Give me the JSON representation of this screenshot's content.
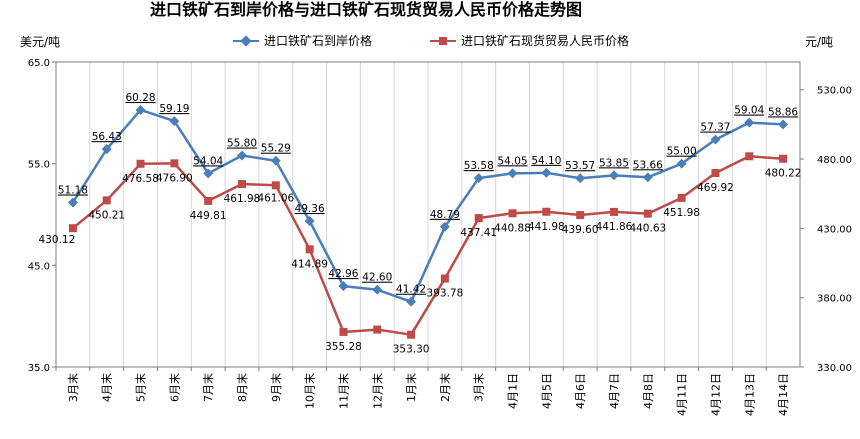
{
  "chart_data": {
    "type": "line",
    "title": "进口铁矿石到岸价格与进口铁矿石现货贸易人民币价格走势图",
    "ylabel_left": "美元/吨",
    "ylabel_right": "元/吨",
    "categories": [
      "3月末",
      "4月末",
      "5月末",
      "6月末",
      "7月末",
      "8月末",
      "9月末",
      "10月末",
      "11月末",
      "12月末",
      "1月末",
      "2月末",
      "3月末",
      "4月1日",
      "4月5日",
      "4月6日",
      "4月7日",
      "4月8日",
      "4月11日",
      "4月12日",
      "4月13日",
      "4月14日"
    ],
    "y_left": {
      "min": 35,
      "max": 65,
      "ticks": [
        35,
        45,
        55,
        65
      ],
      "tick_labels": [
        "35.0",
        "45.0",
        "55.0",
        "65.0"
      ]
    },
    "y_right": {
      "min": 330,
      "max": 550,
      "ticks": [
        330,
        380,
        430,
        480,
        530
      ],
      "tick_labels": [
        "330.00",
        "380.00",
        "430.00",
        "480.00",
        "530.00"
      ]
    },
    "grid": "vertical",
    "legend_position": "top",
    "series": [
      {
        "name": "进口铁矿石到岸价格",
        "axis": "left",
        "color": "#4a7ebb",
        "marker": "diamond",
        "values": [
          51.18,
          56.43,
          60.28,
          59.19,
          54.04,
          55.8,
          55.29,
          49.36,
          42.96,
          42.6,
          41.42,
          48.79,
          53.58,
          54.05,
          54.1,
          53.57,
          53.85,
          53.66,
          55.0,
          57.37,
          59.04,
          58.86
        ],
        "labels": [
          "51.18",
          "56.43",
          "60.28",
          "59.19",
          "54.04",
          "55.80",
          "55.29",
          "49.36",
          "42.96",
          "42.60",
          "41.42",
          "48.79",
          "53.58",
          "54.05",
          "54.10",
          "53.57",
          "53.85",
          "53.66",
          "55.00",
          "57.37",
          "59.04",
          "58.86"
        ]
      },
      {
        "name": "进口铁矿石现货贸易人民币价格",
        "axis": "right",
        "color": "#be4b48",
        "marker": "square",
        "values": [
          430.12,
          450.21,
          476.58,
          476.9,
          449.81,
          461.98,
          461.06,
          414.89,
          355.28,
          357.0,
          353.3,
          393.78,
          437.41,
          440.88,
          441.98,
          439.6,
          441.86,
          440.63,
          451.98,
          469.92,
          482.0,
          480.22
        ],
        "labels": [
          "430.12",
          "450.21",
          "476.58",
          "476.90",
          "449.81",
          "461.98",
          "461.06",
          "414.89",
          "355.28",
          "",
          "353.30",
          "393.78",
          "437.41",
          "440.88",
          "441.98",
          "439.60",
          "441.86",
          "440.63",
          "451.98",
          "469.92",
          "",
          "480.22"
        ]
      }
    ]
  }
}
